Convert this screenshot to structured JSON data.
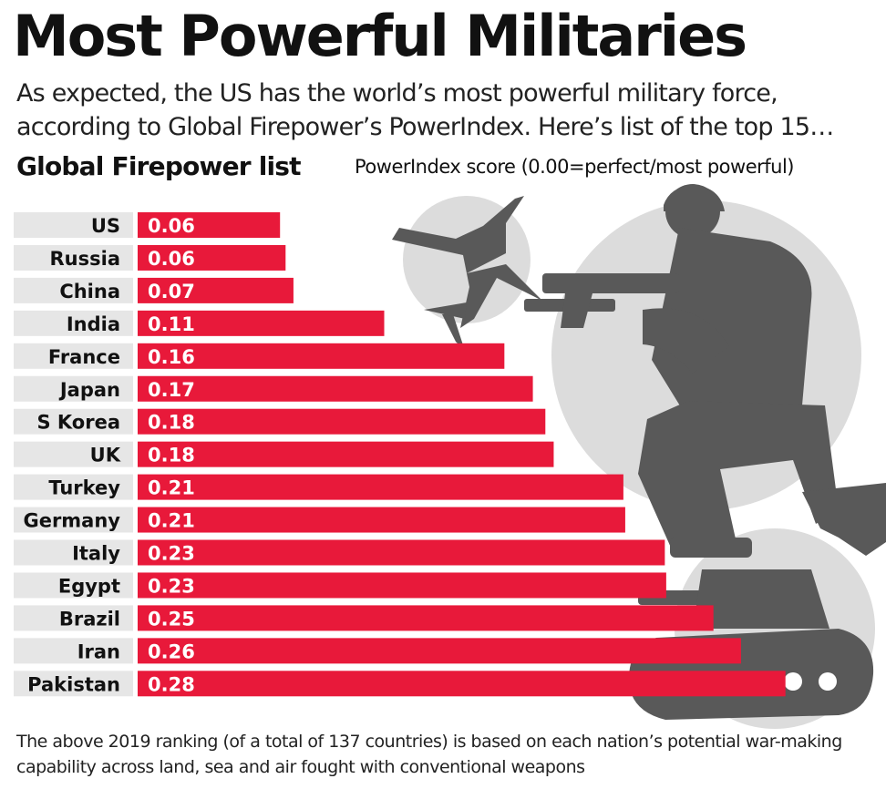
{
  "header": {
    "title": "Most Powerful Militaries",
    "subtitle": "As expected, the US has the world’s most powerful military force, according to Global Firepower’s PowerIndex. Here’s list of the top 15…"
  },
  "chart_heading": "Global Firepower list",
  "chart_note": "PowerIndex score (0.00=perfect/most powerful)",
  "footnote": "The above 2019 ranking (of a total of 137 countries) is based on each nation’s potential war-making capability across land, sea and air fought with conventional weapons",
  "colors": {
    "bar": "#e8193a",
    "label_bg": "#e6e6e6",
    "silhouette": "#595959",
    "circle": "#dcdcdc"
  },
  "icons": [
    "fighter-jet-icon",
    "soldier-icon",
    "tank-icon"
  ],
  "chart_data": {
    "type": "bar",
    "orientation": "horizontal",
    "categories": [
      "US",
      "Russia",
      "China",
      "India",
      "France",
      "Japan",
      "S Korea",
      "UK",
      "Turkey",
      "Germany",
      "Italy",
      "Egypt",
      "Brazil",
      "Iran",
      "Pakistan"
    ],
    "values": [
      0.0615,
      0.0639,
      0.0673,
      0.1065,
      0.1584,
      0.1707,
      0.1761,
      0.1797,
      0.2098,
      0.2106,
      0.2277,
      0.2283,
      0.2487,
      0.2606,
      0.2798
    ],
    "value_labels": [
      "0.06",
      "0.06",
      "0.07",
      "0.11",
      "0.16",
      "0.17",
      "0.18",
      "0.18",
      "0.21",
      "0.21",
      "0.23",
      "0.23",
      "0.25",
      "0.26",
      "0.28"
    ],
    "title": "Global Firepower list",
    "xlabel": "PowerIndex score (0.00=perfect/most powerful)",
    "ylabel": "",
    "xlim": [
      0,
      0.35
    ],
    "grid": false,
    "legend": "none"
  }
}
